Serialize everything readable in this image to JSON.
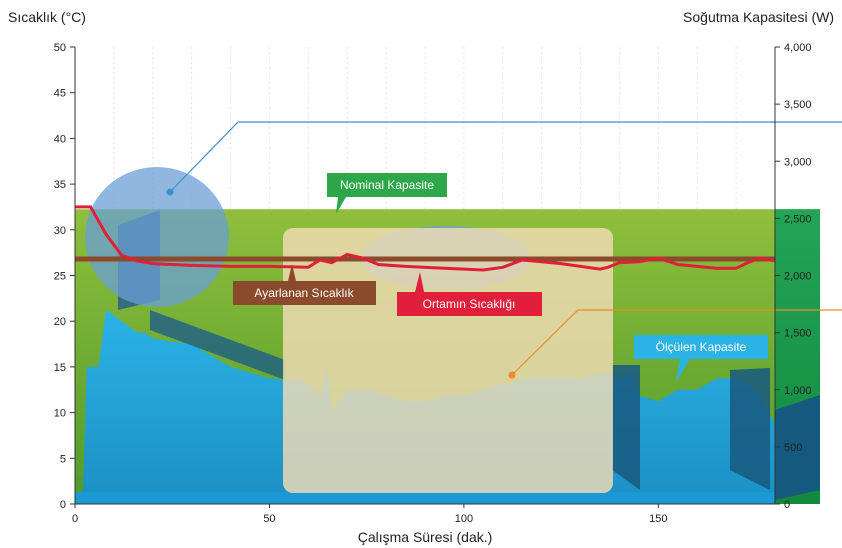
{
  "chart_data": {
    "type": "area",
    "xlabel": "Çalışma Süresi (dak.)",
    "ylabel_left": "Sıcaklık (°C)",
    "ylabel_right": "Soğutma Kapasitesi (W)",
    "xlim": [
      0,
      180
    ],
    "ylim_left": [
      0,
      50
    ],
    "ylim_right": [
      0,
      4000
    ],
    "x_ticks": [
      "0",
      "50",
      "100",
      "150"
    ],
    "y_left_ticks": [
      "0",
      "5",
      "10",
      "15",
      "20",
      "25",
      "30",
      "35",
      "40",
      "45",
      "50"
    ],
    "y_right_ticks": [
      "0",
      "500",
      "1,000",
      "1,500",
      "2,000",
      "2,500",
      "3,000",
      "3,500",
      "4,000"
    ],
    "grid": true,
    "series": [
      {
        "name": "Nominal Kapasite",
        "color": "#3aa845",
        "x": [
          0,
          180
        ],
        "y": [
          2580,
          2580
        ]
      },
      {
        "name": "Ayarlanan Sıcaklık",
        "color": "#8b4a2b",
        "x": [
          0,
          180
        ],
        "y": [
          26.8,
          26.8
        ]
      },
      {
        "name": "Ortamın Sıcaklığı",
        "color": "#e0203a",
        "x": [
          0,
          4,
          8,
          12,
          16,
          20,
          25,
          30,
          40,
          50,
          60,
          63,
          66,
          70,
          74,
          78,
          85,
          95,
          105,
          110,
          115,
          120,
          125,
          130,
          135,
          137,
          140,
          145,
          150,
          155,
          160,
          165,
          170,
          173,
          176,
          180
        ],
        "y": [
          32.5,
          32.5,
          29.5,
          27.2,
          26.6,
          26.3,
          26.2,
          26.1,
          26.0,
          26.0,
          25.9,
          26.7,
          26.4,
          27.3,
          26.9,
          26.2,
          26.0,
          25.8,
          25.6,
          25.9,
          26.7,
          26.5,
          26.3,
          26.0,
          25.7,
          25.9,
          26.4,
          26.5,
          26.9,
          26.2,
          26.0,
          25.8,
          25.8,
          26.4,
          26.9,
          26.6
        ]
      },
      {
        "name": "Ölçülen Kapasite",
        "color": "#22a6dc",
        "x": [
          0,
          2,
          3,
          6,
          8,
          10,
          12,
          14,
          16,
          18,
          20,
          25,
          30,
          35,
          40,
          45,
          50,
          55,
          57,
          60,
          63,
          65,
          66,
          70,
          75,
          80,
          85,
          90,
          95,
          100,
          105,
          110,
          112,
          115,
          120,
          125,
          130,
          135,
          137,
          140,
          143,
          145,
          150,
          155,
          160,
          165,
          170,
          175,
          180
        ],
        "y": [
          30,
          30,
          1200,
          1200,
          1700,
          1650,
          1600,
          1550,
          1500,
          1500,
          1450,
          1420,
          1400,
          1300,
          1200,
          1150,
          1100,
          1080,
          1100,
          1050,
          950,
          1200,
          800,
          1000,
          1000,
          950,
          900,
          900,
          950,
          950,
          1000,
          1050,
          1050,
          1100,
          1100,
          1100,
          1100,
          1150,
          1150,
          1100,
          1150,
          950,
          900,
          1000,
          1000,
          1100,
          1100,
          1000,
          700
        ]
      }
    ],
    "annotations": [
      "Nominal Kapasite",
      "Ayarlanan Sıcaklık",
      "Ortamın Sıcaklığı",
      "Ölçülen Kapasite"
    ],
    "colors": {
      "background_green": "#6ea832",
      "right_band": "#1f9a4a",
      "beige_overlay": "#f0d8ad",
      "blue_ellipse": "#5b9bd5",
      "blue_line": "#3d8ed0",
      "orange_line": "#f08a2b"
    }
  }
}
